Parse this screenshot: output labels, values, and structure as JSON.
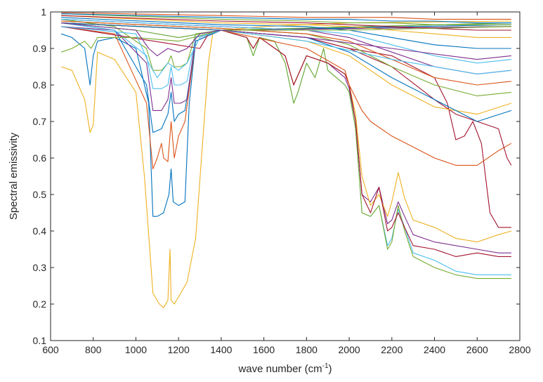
{
  "chart_data": {
    "type": "line",
    "title": "",
    "xlabel": "wave number (cm",
    "xlabel_sup": "-1",
    "xlabel_end": ")",
    "ylabel": "Spectral emissivity",
    "xlim": [
      600,
      2800
    ],
    "ylim": [
      0.1,
      1
    ],
    "xticks": [
      600,
      800,
      1000,
      1200,
      1400,
      1600,
      1800,
      2000,
      2200,
      2400,
      2600,
      2800
    ],
    "yticks": [
      0.1,
      0.2,
      0.3,
      0.4,
      0.5,
      0.6,
      0.7,
      0.8,
      0.9,
      1
    ],
    "ytick_labels": [
      "0.1",
      "0.2",
      "0.3",
      "0.4",
      "0.5",
      "0.6",
      "0.7",
      "0.8",
      "0.9",
      "1"
    ],
    "grid": false,
    "legend": "none",
    "palette": [
      "#0072BD",
      "#D95319",
      "#EDB120",
      "#7E2F8E",
      "#77AC30",
      "#4DBEEE",
      "#A2142F"
    ],
    "series": [
      {
        "color": "#EDB120",
        "x": [
          650,
          700,
          760,
          785,
          800,
          820,
          900,
          1000,
          1040,
          1080,
          1110,
          1130,
          1150,
          1160,
          1165,
          1180,
          1200,
          1240,
          1280,
          1320,
          1340,
          1360,
          1400,
          1600,
          2000,
          2760
        ],
        "y": [
          0.85,
          0.84,
          0.76,
          0.67,
          0.69,
          0.89,
          0.87,
          0.78,
          0.55,
          0.23,
          0.2,
          0.19,
          0.21,
          0.35,
          0.21,
          0.2,
          0.22,
          0.26,
          0.38,
          0.7,
          0.86,
          0.94,
          0.95,
          0.96,
          0.97,
          0.975
        ]
      },
      {
        "color": "#0072BD",
        "x": [
          650,
          700,
          760,
          785,
          800,
          820,
          900,
          1000,
          1060,
          1080,
          1100,
          1130,
          1155,
          1165,
          1175,
          1200,
          1230,
          1250,
          1280,
          1400,
          2760
        ],
        "y": [
          0.94,
          0.93,
          0.9,
          0.8,
          0.88,
          0.92,
          0.93,
          0.9,
          0.75,
          0.44,
          0.44,
          0.45,
          0.5,
          0.57,
          0.48,
          0.47,
          0.48,
          0.75,
          0.92,
          0.95,
          0.96
        ]
      },
      {
        "color": "#D95319",
        "x": [
          650,
          900,
          1050,
          1080,
          1100,
          1120,
          1130,
          1150,
          1165,
          1180,
          1200,
          1230,
          1280,
          1400,
          2760
        ],
        "y": [
          0.96,
          0.94,
          0.75,
          0.57,
          0.6,
          0.64,
          0.6,
          0.59,
          0.7,
          0.6,
          0.66,
          0.7,
          0.92,
          0.95,
          0.96
        ]
      },
      {
        "color": "#0072BD",
        "x": [
          650,
          900,
          1050,
          1080,
          1120,
          1150,
          1165,
          1180,
          1200,
          1230,
          1280,
          1400,
          2760
        ],
        "y": [
          0.97,
          0.95,
          0.8,
          0.67,
          0.68,
          0.72,
          0.78,
          0.7,
          0.72,
          0.73,
          0.92,
          0.95,
          0.965
        ]
      },
      {
        "color": "#7E2F8E",
        "x": [
          650,
          900,
          1050,
          1080,
          1120,
          1150,
          1165,
          1180,
          1210,
          1240,
          1280,
          1400,
          2760
        ],
        "y": [
          0.96,
          0.95,
          0.86,
          0.73,
          0.73,
          0.76,
          0.82,
          0.75,
          0.75,
          0.76,
          0.93,
          0.95,
          0.96
        ]
      },
      {
        "color": "#4DBEEE",
        "x": [
          650,
          900,
          1050,
          1080,
          1120,
          1150,
          1165,
          1180,
          1210,
          1240,
          1280,
          1400,
          2760
        ],
        "y": [
          0.97,
          0.95,
          0.88,
          0.79,
          0.79,
          0.8,
          0.85,
          0.8,
          0.8,
          0.81,
          0.93,
          0.95,
          0.97
        ]
      },
      {
        "color": "#77AC30",
        "x": [
          650,
          900,
          1050,
          1080,
          1120,
          1150,
          1165,
          1180,
          1210,
          1240,
          1280,
          1400,
          2760
        ],
        "y": [
          0.98,
          0.96,
          0.9,
          0.84,
          0.84,
          0.86,
          0.88,
          0.85,
          0.85,
          0.86,
          0.94,
          0.95,
          0.97
        ]
      },
      {
        "color": "#4DBEEE",
        "x": [
          650,
          1000,
          1200,
          1400,
          1520,
          1550,
          1580,
          1650,
          1700,
          1740,
          1760,
          1800,
          1840,
          1880,
          1900,
          1940,
          1980,
          2000,
          2030,
          2060,
          2100,
          2140,
          2180,
          2200,
          2230,
          2260,
          2300,
          2400,
          2500,
          2600,
          2700,
          2760
        ],
        "y": [
          0.97,
          0.95,
          0.93,
          0.95,
          0.93,
          0.88,
          0.93,
          0.92,
          0.86,
          0.75,
          0.78,
          0.86,
          0.82,
          0.9,
          0.84,
          0.82,
          0.8,
          0.78,
          0.68,
          0.45,
          0.44,
          0.47,
          0.36,
          0.38,
          0.46,
          0.41,
          0.34,
          0.32,
          0.29,
          0.28,
          0.28,
          0.28
        ]
      },
      {
        "color": "#77AC30",
        "x": [
          650,
          1000,
          1200,
          1400,
          1520,
          1550,
          1580,
          1650,
          1700,
          1740,
          1760,
          1800,
          1840,
          1880,
          1900,
          1940,
          1980,
          2000,
          2030,
          2060,
          2100,
          2140,
          2180,
          2200,
          2230,
          2260,
          2300,
          2400,
          2500,
          2600,
          2700,
          2760
        ],
        "y": [
          0.97,
          0.95,
          0.93,
          0.95,
          0.93,
          0.88,
          0.93,
          0.92,
          0.86,
          0.75,
          0.78,
          0.86,
          0.82,
          0.9,
          0.84,
          0.82,
          0.8,
          0.78,
          0.68,
          0.45,
          0.44,
          0.47,
          0.35,
          0.37,
          0.47,
          0.4,
          0.33,
          0.3,
          0.28,
          0.27,
          0.27,
          0.27
        ]
      },
      {
        "color": "#7E2F8E",
        "x": [
          650,
          1400,
          1520,
          1550,
          1580,
          1700,
          1740,
          1800,
          1900,
          1980,
          2000,
          2030,
          2060,
          2100,
          2140,
          2180,
          2200,
          2230,
          2260,
          2300,
          2400,
          2500,
          2600,
          2700,
          2760
        ],
        "y": [
          0.97,
          0.95,
          0.93,
          0.9,
          0.93,
          0.88,
          0.8,
          0.88,
          0.86,
          0.82,
          0.79,
          0.7,
          0.5,
          0.48,
          0.52,
          0.42,
          0.43,
          0.48,
          0.44,
          0.39,
          0.37,
          0.36,
          0.35,
          0.34,
          0.34
        ]
      },
      {
        "color": "#EDB120",
        "x": [
          650,
          1400,
          1520,
          1550,
          1580,
          1700,
          1740,
          1800,
          1900,
          1980,
          2000,
          2030,
          2060,
          2100,
          2140,
          2180,
          2200,
          2230,
          2260,
          2300,
          2400,
          2500,
          2600,
          2700,
          2760
        ],
        "y": [
          0.97,
          0.95,
          0.93,
          0.9,
          0.93,
          0.88,
          0.8,
          0.88,
          0.86,
          0.83,
          0.8,
          0.72,
          0.55,
          0.47,
          0.5,
          0.44,
          0.48,
          0.56,
          0.49,
          0.43,
          0.41,
          0.38,
          0.37,
          0.39,
          0.4
        ]
      },
      {
        "color": "#A2142F",
        "x": [
          650,
          1400,
          1520,
          1550,
          1580,
          1700,
          1740,
          1800,
          1900,
          1980,
          2000,
          2030,
          2060,
          2100,
          2140,
          2180,
          2200,
          2230,
          2260,
          2300,
          2400,
          2500,
          2600,
          2700,
          2760
        ],
        "y": [
          0.97,
          0.95,
          0.93,
          0.9,
          0.93,
          0.88,
          0.8,
          0.88,
          0.86,
          0.83,
          0.8,
          0.7,
          0.5,
          0.45,
          0.52,
          0.4,
          0.41,
          0.45,
          0.41,
          0.36,
          0.35,
          0.33,
          0.34,
          0.33,
          0.33
        ]
      },
      {
        "color": "#A2142F",
        "x": [
          650,
          1300,
          1340,
          1400,
          1800,
          2000,
          2200,
          2400,
          2460,
          2500,
          2540,
          2580,
          2620,
          2660,
          2700,
          2760
        ],
        "y": [
          0.96,
          0.9,
          0.94,
          0.95,
          0.93,
          0.9,
          0.88,
          0.82,
          0.75,
          0.65,
          0.66,
          0.7,
          0.64,
          0.45,
          0.41,
          0.41
        ]
      },
      {
        "color": "#D95319",
        "x": [
          650,
          1400,
          1800,
          1980,
          2000,
          2060,
          2100,
          2200,
          2300,
          2400,
          2500,
          2600,
          2700,
          2760
        ],
        "y": [
          0.97,
          0.95,
          0.9,
          0.84,
          0.8,
          0.73,
          0.7,
          0.66,
          0.63,
          0.6,
          0.58,
          0.58,
          0.62,
          0.64
        ]
      },
      {
        "color": "#A2142F",
        "x": [
          650,
          1400,
          1800,
          2000,
          2200,
          2400,
          2500,
          2600,
          2700,
          2740,
          2760
        ],
        "y": [
          0.97,
          0.95,
          0.93,
          0.9,
          0.85,
          0.76,
          0.72,
          0.7,
          0.68,
          0.6,
          0.58
        ]
      },
      {
        "color": "#EDB120",
        "x": [
          650,
          1400,
          1800,
          2000,
          2200,
          2400,
          2600,
          2760
        ],
        "y": [
          0.97,
          0.95,
          0.92,
          0.88,
          0.8,
          0.74,
          0.72,
          0.75
        ]
      },
      {
        "color": "#0072BD",
        "x": [
          650,
          1400,
          1800,
          2000,
          2200,
          2400,
          2600,
          2760
        ],
        "y": [
          0.97,
          0.95,
          0.93,
          0.89,
          0.82,
          0.76,
          0.7,
          0.73
        ]
      },
      {
        "color": "#77AC30",
        "x": [
          650,
          1400,
          1800,
          2000,
          2200,
          2400,
          2600,
          2760
        ],
        "y": [
          0.975,
          0.955,
          0.94,
          0.91,
          0.85,
          0.8,
          0.77,
          0.78
        ]
      },
      {
        "color": "#D95319",
        "x": [
          650,
          1400,
          1800,
          2000,
          2200,
          2400,
          2600,
          2760
        ],
        "y": [
          0.975,
          0.955,
          0.94,
          0.92,
          0.87,
          0.82,
          0.8,
          0.81
        ]
      },
      {
        "color": "#7E2F8E",
        "x": [
          650,
          1400,
          1800,
          2000,
          2200,
          2400,
          2600,
          2760
        ],
        "y": [
          0.98,
          0.96,
          0.95,
          0.93,
          0.89,
          0.85,
          0.83,
          0.84
        ]
      },
      {
        "color": "#4DBEEE",
        "x": [
          650,
          1400,
          1800,
          2000,
          2200,
          2400,
          2600,
          2760
        ],
        "y": [
          0.98,
          0.96,
          0.95,
          0.94,
          0.91,
          0.88,
          0.86,
          0.87
        ]
      },
      {
        "color": "#0072BD",
        "x": [
          650,
          1400,
          1800,
          2000,
          2200,
          2400,
          2600,
          2760
        ],
        "y": [
          0.985,
          0.965,
          0.96,
          0.95,
          0.93,
          0.91,
          0.9,
          0.9
        ]
      },
      {
        "color": "#EDB120",
        "x": [
          650,
          1400,
          1800,
          2000,
          2200,
          2400,
          2600,
          2760
        ],
        "y": [
          0.99,
          0.97,
          0.965,
          0.96,
          0.95,
          0.94,
          0.93,
          0.93
        ]
      },
      {
        "color": "#A2142F",
        "x": [
          650,
          1400,
          1800,
          2000,
          2200,
          2400,
          2600,
          2760
        ],
        "y": [
          0.99,
          0.975,
          0.97,
          0.965,
          0.96,
          0.955,
          0.95,
          0.95
        ]
      },
      {
        "color": "#77AC30",
        "x": [
          650,
          1400,
          1800,
          2000,
          2200,
          2400,
          2600,
          2760
        ],
        "y": [
          0.995,
          0.98,
          0.975,
          0.97,
          0.97,
          0.965,
          0.965,
          0.965
        ]
      },
      {
        "color": "#0072BD",
        "x": [
          650,
          1400,
          1800,
          2000,
          2200,
          2400,
          2600,
          2760
        ],
        "y": [
          0.995,
          0.985,
          0.98,
          0.98,
          0.975,
          0.975,
          0.97,
          0.97
        ]
      },
      {
        "color": "#D95319",
        "x": [
          650,
          1400,
          1800,
          2000,
          2200,
          2400,
          2600,
          2760
        ],
        "y": [
          0.998,
          0.99,
          0.985,
          0.985,
          0.985,
          0.98,
          0.98,
          0.98
        ]
      },
      {
        "color": "#77AC30",
        "x": [
          650,
          700,
          760,
          790,
          820,
          900,
          1000,
          1200,
          1400,
          1600,
          2000,
          2760
        ],
        "y": [
          0.89,
          0.9,
          0.92,
          0.9,
          0.93,
          0.93,
          0.93,
          0.92,
          0.95,
          0.95,
          0.95,
          0.96
        ]
      },
      {
        "color": "#4DBEEE",
        "x": [
          650,
          1000,
          1060,
          1100,
          1150,
          1200,
          1240,
          1300,
          1400,
          1800,
          2200,
          2600,
          2760
        ],
        "y": [
          0.96,
          0.94,
          0.86,
          0.82,
          0.86,
          0.84,
          0.86,
          0.93,
          0.95,
          0.92,
          0.87,
          0.83,
          0.84
        ]
      },
      {
        "color": "#7E2F8E",
        "x": [
          650,
          1000,
          1060,
          1100,
          1150,
          1200,
          1240,
          1300,
          1400,
          1800,
          2200,
          2600,
          2760
        ],
        "y": [
          0.97,
          0.95,
          0.9,
          0.88,
          0.9,
          0.89,
          0.9,
          0.94,
          0.95,
          0.93,
          0.9,
          0.87,
          0.88
        ]
      }
    ]
  }
}
